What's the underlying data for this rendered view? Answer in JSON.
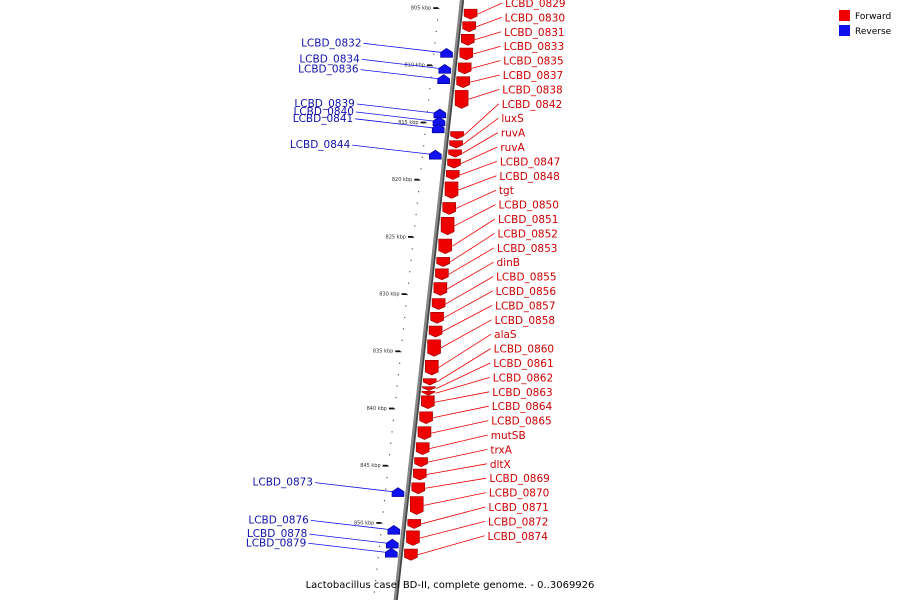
{
  "map": {
    "caption": "Lactobacillus casei BD-II, complete genome. - 0..3069926",
    "colors": {
      "forward": "#ee0000",
      "reverse": "#1111ee",
      "backbone": "#888888"
    },
    "legend": [
      {
        "label": "Forward",
        "color": "#ee0000"
      },
      {
        "label": "Reverse",
        "color": "#1111ee"
      }
    ],
    "kbp_ticks": [
      {
        "kbp": 805,
        "label": "805 kbp"
      },
      {
        "kbp": 810,
        "label": "810 kbp"
      },
      {
        "kbp": 815,
        "label": "815 kbp"
      },
      {
        "kbp": 820,
        "label": "820 kbp"
      },
      {
        "kbp": 825,
        "label": "825 kbp"
      },
      {
        "kbp": 830,
        "label": "830 kbp"
      },
      {
        "kbp": 835,
        "label": "835 kbp"
      },
      {
        "kbp": 840,
        "label": "840 kbp"
      },
      {
        "kbp": 845,
        "label": "845 kbp"
      },
      {
        "kbp": 850,
        "label": "850 kbp"
      }
    ],
    "forward_genes": [
      {
        "name": "LCBD_0829",
        "kbp": 805.1
      },
      {
        "name": "LCBD_0830",
        "kbp": 806.2
      },
      {
        "name": "LCBD_0831",
        "kbp": 807.3
      },
      {
        "name": "LCBD_0833",
        "kbp": 808.5
      },
      {
        "name": "LCBD_0835",
        "kbp": 809.8
      },
      {
        "name": "LCBD_0837",
        "kbp": 811.0
      },
      {
        "name": "LCBD_0838",
        "kbp": 812.2
      },
      {
        "name": "LCBD_0842",
        "kbp": 815.8
      },
      {
        "name": "luxS",
        "kbp": 816.6
      },
      {
        "name": "ruvA",
        "kbp": 817.4
      },
      {
        "name": "ruvA",
        "kbp": 818.2
      },
      {
        "name": "LCBD_0847",
        "kbp": 819.2
      },
      {
        "name": "LCBD_0848",
        "kbp": 820.2
      },
      {
        "name": "tgt",
        "kbp": 822.0
      },
      {
        "name": "LCBD_0850",
        "kbp": 823.3
      },
      {
        "name": "LCBD_0851",
        "kbp": 825.2
      },
      {
        "name": "LCBD_0852",
        "kbp": 826.8
      },
      {
        "name": "LCBD_0853",
        "kbp": 827.8
      },
      {
        "name": "dinB",
        "kbp": 829.0
      },
      {
        "name": "LCBD_0855",
        "kbp": 830.4
      },
      {
        "name": "LCBD_0856",
        "kbp": 831.6
      },
      {
        "name": "LCBD_0857",
        "kbp": 832.8
      },
      {
        "name": "LCBD_0858",
        "kbp": 834.0
      },
      {
        "name": "alaS",
        "kbp": 835.8
      },
      {
        "name": "LCBD_0860",
        "kbp": 837.4
      },
      {
        "name": "LCBD_0861",
        "kbp": 838.1
      },
      {
        "name": "LCBD_0862",
        "kbp": 838.5
      },
      {
        "name": "LCBD_0863",
        "kbp": 838.9
      },
      {
        "name": "LCBD_0864",
        "kbp": 840.3
      },
      {
        "name": "LCBD_0865",
        "kbp": 841.6
      },
      {
        "name": "mutSB",
        "kbp": 843.0
      },
      {
        "name": "trxA",
        "kbp": 844.3
      },
      {
        "name": "dltX",
        "kbp": 845.3
      },
      {
        "name": "LCBD_0869",
        "kbp": 846.5
      },
      {
        "name": "LCBD_0870",
        "kbp": 847.7
      },
      {
        "name": "LCBD_0871",
        "kbp": 849.7
      },
      {
        "name": "LCBD_0872",
        "kbp": 850.7
      },
      {
        "name": "LCBD_0874",
        "kbp": 852.3
      }
    ],
    "reverse_genes": [
      {
        "name": "LCBD_0832",
        "kbp": 808.7
      },
      {
        "name": "LCBD_0834",
        "kbp": 810.1
      },
      {
        "name": "LCBD_0836",
        "kbp": 811.0
      },
      {
        "name": "LCBD_0839",
        "kbp": 814.0
      },
      {
        "name": "LCBD_0840",
        "kbp": 814.7
      },
      {
        "name": "LCBD_0841",
        "kbp": 815.3
      },
      {
        "name": "LCBD_0844",
        "kbp": 817.6
      },
      {
        "name": "LCBD_0873",
        "kbp": 847.1
      },
      {
        "name": "LCBD_0876",
        "kbp": 850.4
      },
      {
        "name": "LCBD_0878",
        "kbp": 851.6
      },
      {
        "name": "LCBD_0879",
        "kbp": 852.4
      }
    ]
  }
}
